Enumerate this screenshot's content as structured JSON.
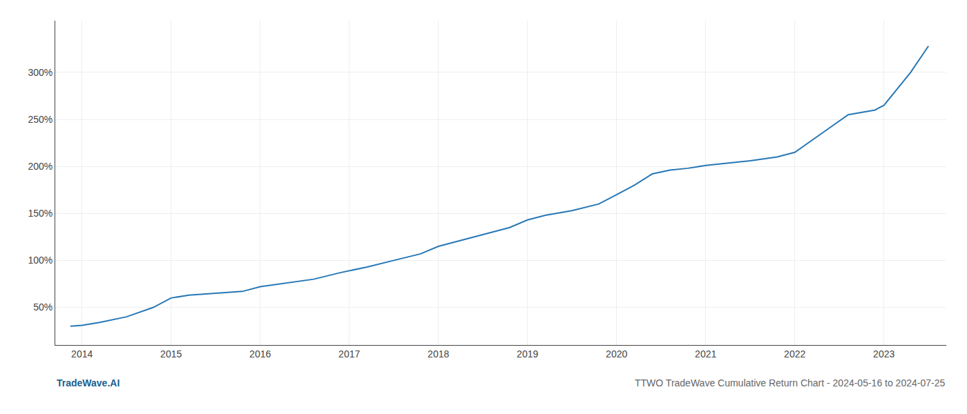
{
  "chart_data": {
    "type": "line",
    "title": "TTWO TradeWave Cumulative Return Chart - 2024-05-16 to 2024-07-25",
    "annotations": [
      "TradeWave.AI"
    ],
    "x": [
      2013.87,
      2014.0,
      2014.2,
      2014.5,
      2014.8,
      2015.0,
      2015.2,
      2015.5,
      2015.8,
      2016.0,
      2016.3,
      2016.6,
      2016.9,
      2017.2,
      2017.5,
      2017.8,
      2018.0,
      2018.2,
      2018.5,
      2018.8,
      2019.0,
      2019.2,
      2019.5,
      2019.8,
      2020.0,
      2020.2,
      2020.4,
      2020.6,
      2020.8,
      2021.0,
      2021.2,
      2021.5,
      2021.8,
      2022.0,
      2022.3,
      2022.6,
      2022.9,
      2023.0,
      2023.3,
      2023.5
    ],
    "values": [
      30,
      31,
      34,
      40,
      50,
      60,
      63,
      65,
      67,
      72,
      76,
      80,
      87,
      93,
      100,
      107,
      115,
      120,
      128,
      135,
      143,
      148,
      153,
      160,
      170,
      180,
      192,
      196,
      198,
      201,
      203,
      206,
      210,
      215,
      235,
      255,
      260,
      265,
      300,
      328
    ],
    "color": "#2677b5",
    "xlim": [
      2013.7,
      2023.7
    ],
    "xticks": [
      2014,
      2015,
      2016,
      2017,
      2018,
      2019,
      2020,
      2021,
      2022,
      2023
    ],
    "ylim": [
      10,
      355
    ],
    "yticks": [
      {
        "value": 50,
        "label": "50%"
      },
      {
        "value": 100,
        "label": "100%"
      },
      {
        "value": 150,
        "label": "150%"
      },
      {
        "value": 200,
        "label": "200%"
      },
      {
        "value": 250,
        "label": "250%"
      },
      {
        "value": 300,
        "label": "300%"
      }
    ],
    "grid": true
  }
}
